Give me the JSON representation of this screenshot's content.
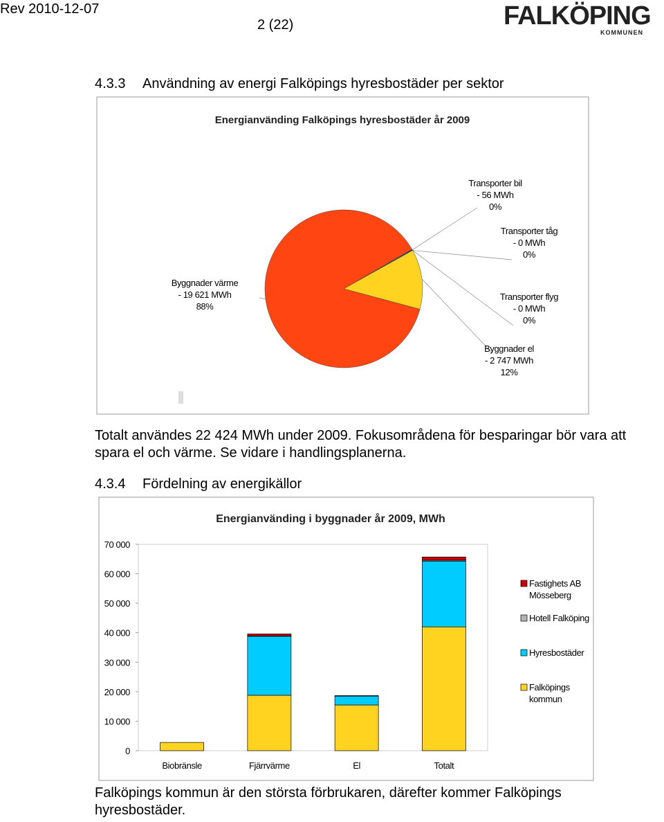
{
  "header": {
    "revision": "Rev 2010-12-07",
    "page": "2 (22)",
    "logo": "FALKÖPING",
    "logo_sub": "KOMMUNEN"
  },
  "sections": [
    {
      "number": "4.3.3",
      "title": "Användning av energi Falköpings hyresbostäder per sektor",
      "paragraph": "Totalt användes 22 424 MWh under 2009. Fokusområdena för besparingar bör vara att spara el och värme. Se vidare i handlingsplanerna."
    },
    {
      "number": "4.3.4",
      "title": "Fördelning av energikällor",
      "paragraph": "Falköpings kommun är den största förbrukaren, därefter kommer Falköpings hyresbostäder."
    }
  ],
  "chart_data": [
    {
      "type": "pie",
      "title": "Energianvänding Falköpings hyresbostäder år 2009",
      "categories": [
        "Transporter bil",
        "Transporter tåg",
        "Transporter flyg",
        "Byggnader el",
        "Byggnader värme"
      ],
      "values": [
        56,
        0,
        0,
        2747,
        19621
      ],
      "value_labels": [
        "- 56 MWh",
        "- 0 MWh",
        "- 0 MWh",
        "- 2 747 MWh",
        "- 19 621 MWh"
      ],
      "percent_labels": [
        "0%",
        "0%",
        "0%",
        "12%",
        "88%"
      ],
      "colors": [
        "#004586",
        "#83caff",
        "#7e0021",
        "#ffd320",
        "#ff4512"
      ]
    },
    {
      "type": "bar",
      "stacked": true,
      "title": "Energianvänding i byggnader år 2009, MWh",
      "categories": [
        "Biobränsle",
        "Fjärrvärme",
        "El",
        "Totalt"
      ],
      "series": [
        {
          "name": "Falköpings kommun",
          "color": "#ffd320",
          "values": [
            2800,
            18800,
            15500,
            42000
          ]
        },
        {
          "name": "Hyresbostäder",
          "color": "#00ccff",
          "values": [
            0,
            20000,
            3000,
            22300
          ]
        },
        {
          "name": "Hotell Falköping",
          "color": "#b2b2b2",
          "values": [
            0,
            100,
            200,
            300
          ]
        },
        {
          "name": "Fastighets AB Mösseberg",
          "color": "#cc0000",
          "values": [
            0,
            700,
            0,
            1100
          ]
        }
      ],
      "ylim": [
        0,
        70000
      ],
      "yticks": [
        0,
        {
          "value": 10000,
          "label": "10 000"
        },
        {
          "value": 20000,
          "label": "20 000"
        },
        {
          "value": 30000,
          "label": "30 000"
        },
        {
          "value": 40000,
          "label": "40 000"
        },
        {
          "value": 50000,
          "label": "50 000"
        },
        {
          "value": 60000,
          "label": "60 000"
        },
        {
          "value": 70000,
          "label": "70 000"
        }
      ],
      "grid": false,
      "legend": "right"
    }
  ]
}
